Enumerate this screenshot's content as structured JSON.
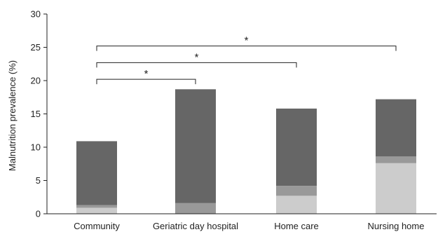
{
  "chart_data": {
    "type": "bar",
    "stacked": true,
    "title": "",
    "xlabel": "",
    "ylabel": "Malnutrition prevalence (%)",
    "ylim": [
      0,
      30
    ],
    "yticks": [
      0,
      5,
      10,
      15,
      20,
      25,
      30
    ],
    "grid": false,
    "categories": [
      "Community",
      "Geriatric day hospital",
      "Home care",
      "Nursing home"
    ],
    "series": [
      {
        "color": "#cccccc",
        "values": [
          0.9,
          0.0,
          2.7,
          7.6
        ]
      },
      {
        "color": "#999999",
        "values": [
          0.4,
          1.6,
          1.5,
          1.0
        ]
      },
      {
        "color": "#666666",
        "values": [
          9.6,
          17.1,
          11.6,
          8.6
        ]
      }
    ],
    "significance": [
      {
        "from": "Community",
        "to": "Geriatric day hospital",
        "y": 20.2,
        "label": "*"
      },
      {
        "from": "Community",
        "to": "Home care",
        "y": 22.7,
        "label": "*"
      },
      {
        "from": "Community",
        "to": "Nursing home",
        "y": 25.2,
        "label": "*"
      }
    ]
  }
}
